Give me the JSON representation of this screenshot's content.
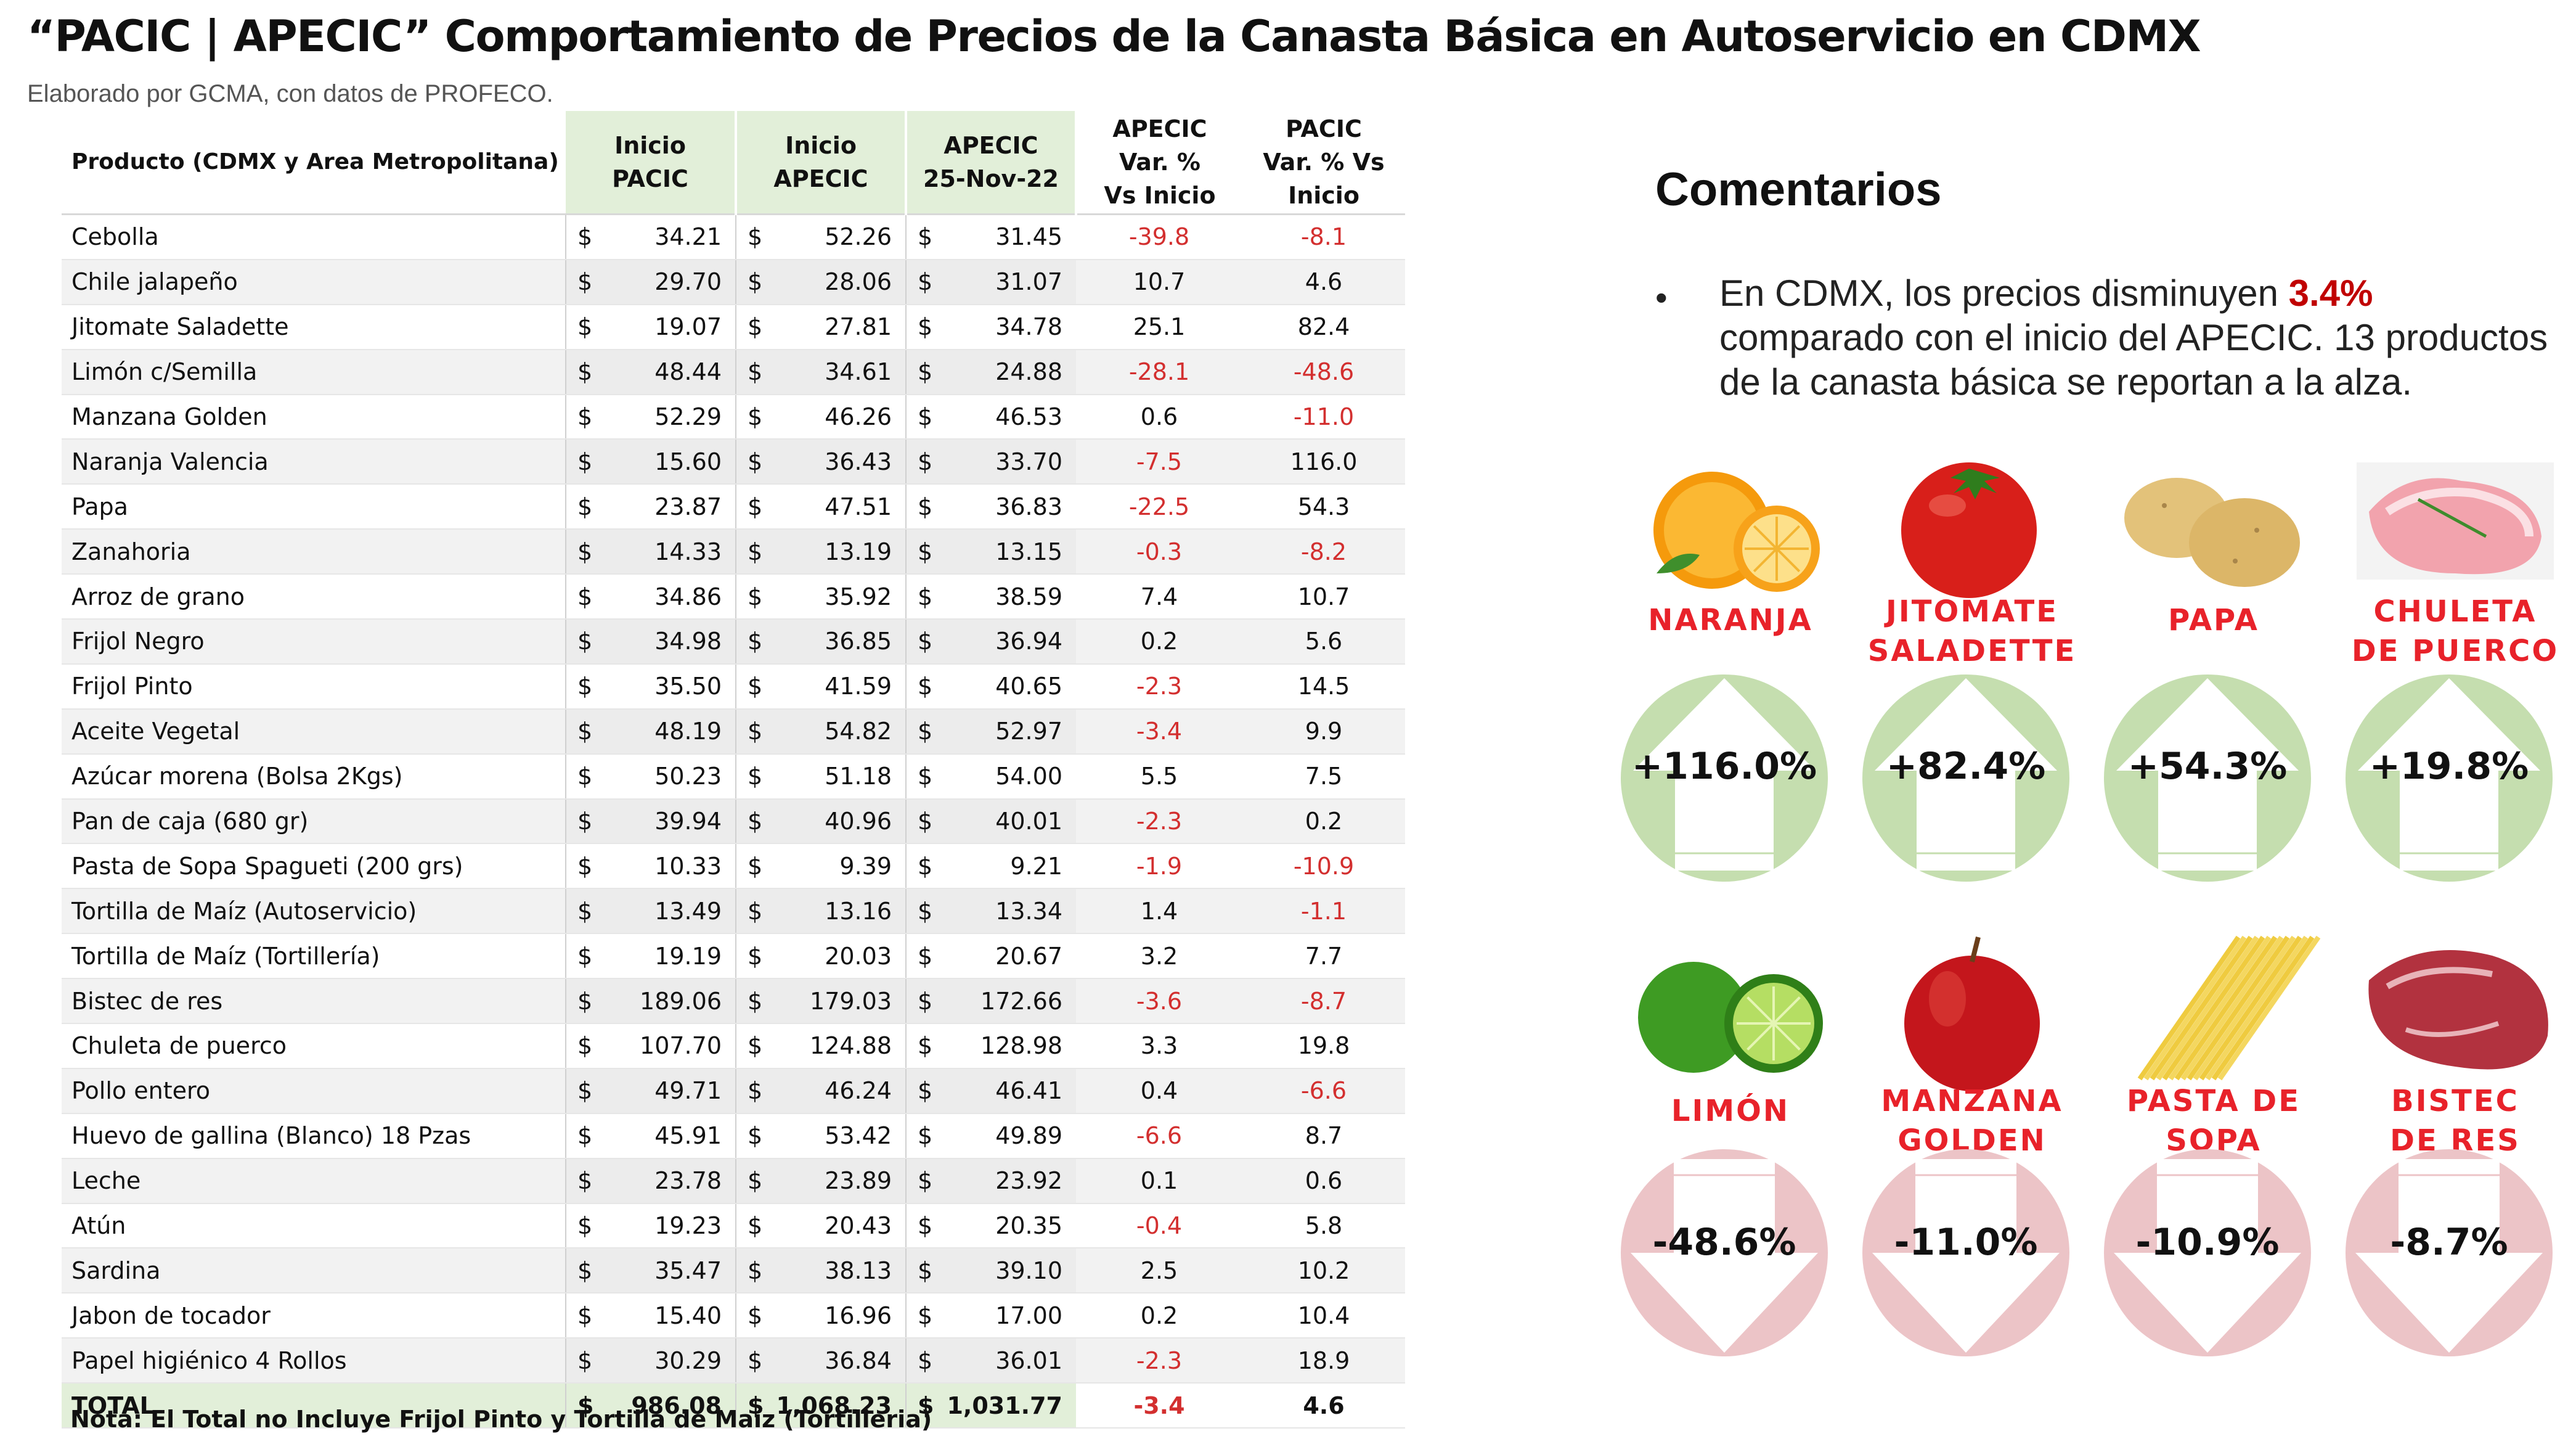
{
  "header": {
    "title": "“PACIC | APECIC” Comportamiento de Precios de la Canasta Básica en Autoservicio en CDMX",
    "subtitle": "Elaborado por GCMA, con datos de PROFECO."
  },
  "table": {
    "headers": {
      "product": "Producto (CDMX y Area Metropolitana)",
      "pacic": "Inicio\nPACIC",
      "apecic": "Inicio\nAPECIC",
      "current": "APECIC\n25-Nov-22",
      "var_apecic": "APECIC\nVar. %\nVs  Inicio",
      "var_pacic": "PACIC\nVar. % Vs\nInicio"
    },
    "currency_symbol": "$",
    "rows": [
      {
        "product": "Cebolla",
        "pacic": "34.21",
        "apecic": "52.26",
        "current": "31.45",
        "var_apecic": "-39.8",
        "var_pacic": "-8.1"
      },
      {
        "product": "Chile jalapeño",
        "pacic": "29.70",
        "apecic": "28.06",
        "current": "31.07",
        "var_apecic": "10.7",
        "var_pacic": "4.6"
      },
      {
        "product": "Jitomate Saladette",
        "pacic": "19.07",
        "apecic": "27.81",
        "current": "34.78",
        "var_apecic": "25.1",
        "var_pacic": "82.4"
      },
      {
        "product": "Limón c/Semilla",
        "pacic": "48.44",
        "apecic": "34.61",
        "current": "24.88",
        "var_apecic": "-28.1",
        "var_pacic": "-48.6"
      },
      {
        "product": "Manzana Golden",
        "pacic": "52.29",
        "apecic": "46.26",
        "current": "46.53",
        "var_apecic": "0.6",
        "var_pacic": "-11.0"
      },
      {
        "product": "Naranja Valencia",
        "pacic": "15.60",
        "apecic": "36.43",
        "current": "33.70",
        "var_apecic": "-7.5",
        "var_pacic": "116.0"
      },
      {
        "product": "Papa",
        "pacic": "23.87",
        "apecic": "47.51",
        "current": "36.83",
        "var_apecic": "-22.5",
        "var_pacic": "54.3"
      },
      {
        "product": "Zanahoria",
        "pacic": "14.33",
        "apecic": "13.19",
        "current": "13.15",
        "var_apecic": "-0.3",
        "var_pacic": "-8.2"
      },
      {
        "product": "Arroz de grano",
        "pacic": "34.86",
        "apecic": "35.92",
        "current": "38.59",
        "var_apecic": "7.4",
        "var_pacic": "10.7"
      },
      {
        "product": "Frijol Negro",
        "pacic": "34.98",
        "apecic": "36.85",
        "current": "36.94",
        "var_apecic": "0.2",
        "var_pacic": "5.6"
      },
      {
        "product": "Frijol Pinto",
        "pacic": "35.50",
        "apecic": "41.59",
        "current": "40.65",
        "var_apecic": "-2.3",
        "var_pacic": "14.5"
      },
      {
        "product": "Aceite Vegetal",
        "pacic": "48.19",
        "apecic": "54.82",
        "current": "52.97",
        "var_apecic": "-3.4",
        "var_pacic": "9.9"
      },
      {
        "product": "Azúcar morena (Bolsa 2Kgs)",
        "pacic": "50.23",
        "apecic": "51.18",
        "current": "54.00",
        "var_apecic": "5.5",
        "var_pacic": "7.5"
      },
      {
        "product": "Pan de caja (680 gr)",
        "pacic": "39.94",
        "apecic": "40.96",
        "current": "40.01",
        "var_apecic": "-2.3",
        "var_pacic": "0.2"
      },
      {
        "product": "Pasta de Sopa Spagueti (200 grs)",
        "pacic": "10.33",
        "apecic": "9.39",
        "current": "9.21",
        "var_apecic": "-1.9",
        "var_pacic": "-10.9"
      },
      {
        "product": "Tortilla de Maíz (Autoservicio)",
        "pacic": "13.49",
        "apecic": "13.16",
        "current": "13.34",
        "var_apecic": "1.4",
        "var_pacic": "-1.1"
      },
      {
        "product": "Tortilla de Maíz (Tortillería)",
        "pacic": "19.19",
        "apecic": "20.03",
        "current": "20.67",
        "var_apecic": "3.2",
        "var_pacic": "7.7"
      },
      {
        "product": "Bistec de res",
        "pacic": "189.06",
        "apecic": "179.03",
        "current": "172.66",
        "var_apecic": "-3.6",
        "var_pacic": "-8.7"
      },
      {
        "product": "Chuleta de puerco",
        "pacic": "107.70",
        "apecic": "124.88",
        "current": "128.98",
        "var_apecic": "3.3",
        "var_pacic": "19.8"
      },
      {
        "product": "Pollo entero",
        "pacic": "49.71",
        "apecic": "46.24",
        "current": "46.41",
        "var_apecic": "0.4",
        "var_pacic": "-6.6"
      },
      {
        "product": "Huevo de gallina (Blanco) 18 Pzas",
        "pacic": "45.91",
        "apecic": "53.42",
        "current": "49.89",
        "var_apecic": "-6.6",
        "var_pacic": "8.7"
      },
      {
        "product": "Leche",
        "pacic": "23.78",
        "apecic": "23.89",
        "current": "23.92",
        "var_apecic": "0.1",
        "var_pacic": "0.6"
      },
      {
        "product": "Atún",
        "pacic": "19.23",
        "apecic": "20.43",
        "current": "20.35",
        "var_apecic": "-0.4",
        "var_pacic": "5.8"
      },
      {
        "product": "Sardina",
        "pacic": "35.47",
        "apecic": "38.13",
        "current": "39.10",
        "var_apecic": "2.5",
        "var_pacic": "10.2"
      },
      {
        "product": "Jabon de tocador",
        "pacic": "15.40",
        "apecic": "16.96",
        "current": "17.00",
        "var_apecic": "0.2",
        "var_pacic": "10.4"
      },
      {
        "product": "Papel higiénico 4 Rollos",
        "pacic": "30.29",
        "apecic": "36.84",
        "current": "36.01",
        "var_apecic": "-2.3",
        "var_pacic": "18.9"
      }
    ],
    "total": {
      "product": "TOTAL",
      "pacic": "986.08",
      "apecic": "1,068.23",
      "current": "1,031.77",
      "var_apecic": "-3.4",
      "var_pacic": "4.6"
    },
    "note": "Nota: El Total no Incluye Frijol Pinto y Tortilla de Maíz (Tortilleria)"
  },
  "comments": {
    "title": "Comentarios",
    "bullet_symbol": "•",
    "bullet_pre": "En CDMX, los precios disminuyen ",
    "bullet_highlight": "3.4%",
    "bullet_post": " comparado con el inicio del APECIC. 13 productos de la canasta básica se reportan a la alza.",
    "highlight_color": "#c00000"
  },
  "cards": [
    {
      "label": "NARANJA",
      "value": "+116.0%",
      "direction": "up",
      "icon": "orange-icon"
    },
    {
      "label": "JITOMATE\nSALADETTE",
      "value": "+82.4%",
      "direction": "up",
      "icon": "tomato-icon"
    },
    {
      "label": "PAPA",
      "value": "+54.3%",
      "direction": "up",
      "icon": "potato-icon"
    },
    {
      "label": "CHULETA\nDE PUERCO",
      "value": "+19.8%",
      "direction": "up",
      "icon": "pork-chop-icon"
    },
    {
      "label": "LIMÓN",
      "value": "-48.6%",
      "direction": "down",
      "icon": "lime-icon"
    },
    {
      "label": "MANZANA\nGOLDEN",
      "value": "-11.0%",
      "direction": "down",
      "icon": "apple-icon"
    },
    {
      "label": "PASTA DE\nSOPA",
      "value": "-10.9%",
      "direction": "down",
      "icon": "pasta-icon"
    },
    {
      "label": "BISTEC\nDE RES",
      "value": "-8.7%",
      "direction": "down",
      "icon": "beef-steak-icon"
    }
  ],
  "colors": {
    "up_circle": "#c5deaf",
    "down_circle": "#ecc4c7",
    "label_red": "#e8222a",
    "negative_text": "#d32f2f",
    "header_green": "#e2efd9"
  }
}
